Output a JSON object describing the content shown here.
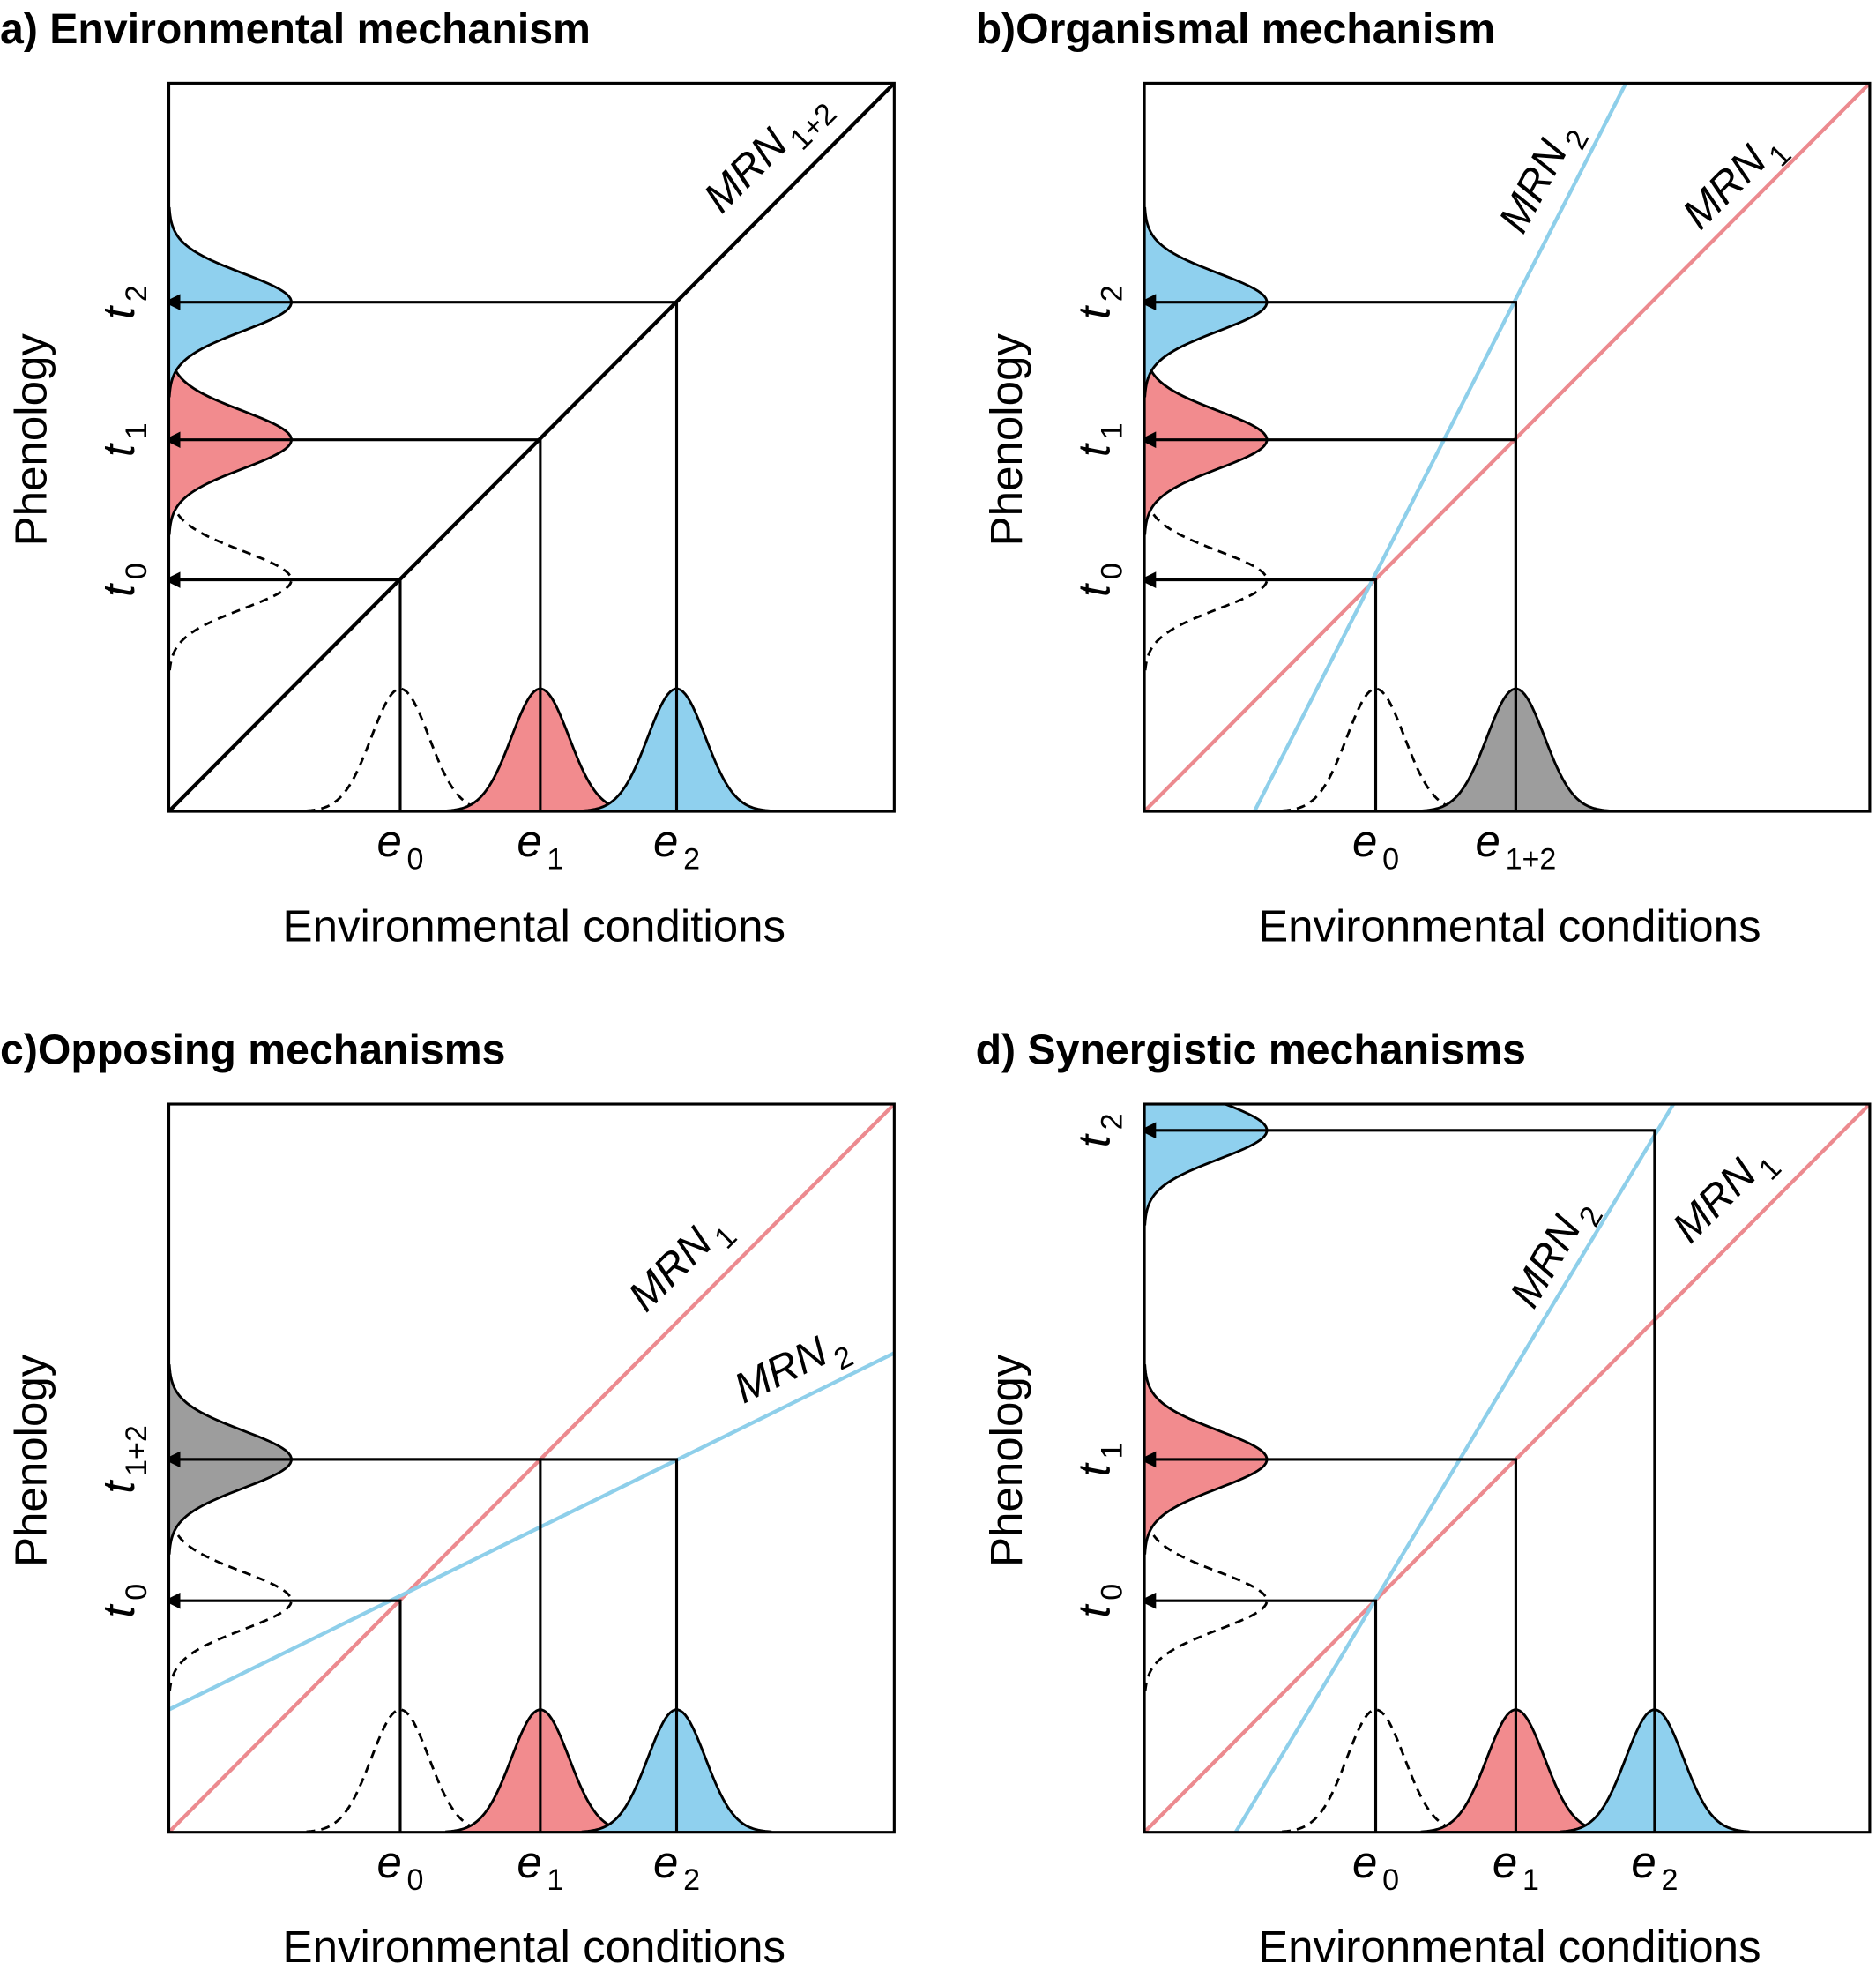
{
  "panels": [
    {
      "title": "a) Environmental mechanism",
      "y_axis": "Phenology",
      "x_axis": "Environmental conditions",
      "t_labels": [
        {
          "symbol": "t",
          "subscript": "2"
        },
        {
          "symbol": "t",
          "subscript": "1"
        },
        {
          "symbol": "t",
          "subscript": "0"
        }
      ],
      "e_labels": [
        {
          "symbol": "e",
          "subscript": "0"
        },
        {
          "symbol": "e",
          "subscript": "1"
        },
        {
          "symbol": "e",
          "subscript": "2"
        }
      ],
      "line_labels": [
        {
          "symbol": "MRN",
          "subscript": "1+2"
        }
      ]
    },
    {
      "title": "b)Organismal mechanism",
      "y_axis": "Phenology",
      "x_axis": "Environmental conditions",
      "t_labels": [
        {
          "symbol": "t",
          "subscript": "2"
        },
        {
          "symbol": "t",
          "subscript": "1"
        },
        {
          "symbol": "t",
          "subscript": "0"
        }
      ],
      "e_labels": [
        {
          "symbol": "e",
          "subscript": "0"
        },
        {
          "symbol": "e",
          "subscript": "1+2"
        }
      ],
      "line_labels": [
        {
          "symbol": "MRN",
          "subscript": "2"
        },
        {
          "symbol": "MRN",
          "subscript": "1"
        }
      ]
    },
    {
      "title": "c)Opposing mechanisms",
      "y_axis": "Phenology",
      "x_axis": "Environmental conditions",
      "t_labels": [
        {
          "symbol": "t",
          "subscript": "1+2"
        },
        {
          "symbol": "t",
          "subscript": "0"
        }
      ],
      "e_labels": [
        {
          "symbol": "e",
          "subscript": "0"
        },
        {
          "symbol": "e",
          "subscript": "1"
        },
        {
          "symbol": "e",
          "subscript": "2"
        }
      ],
      "line_labels": [
        {
          "symbol": "MRN",
          "subscript": "1"
        },
        {
          "symbol": "MRN",
          "subscript": "2"
        }
      ]
    },
    {
      "title": "d) Synergistic mechanisms",
      "y_axis": "Phenology",
      "x_axis": "Environmental conditions",
      "t_labels": [
        {
          "symbol": "t",
          "subscript": "2"
        },
        {
          "symbol": "t",
          "subscript": "1"
        },
        {
          "symbol": "t",
          "subscript": "0"
        }
      ],
      "e_labels": [
        {
          "symbol": "e",
          "subscript": "0"
        },
        {
          "symbol": "e",
          "subscript": "1"
        },
        {
          "symbol": "e",
          "subscript": "2"
        }
      ],
      "line_labels": [
        {
          "symbol": "MRN",
          "subscript": "2"
        },
        {
          "symbol": "MRN",
          "subscript": "1"
        }
      ]
    }
  ]
}
